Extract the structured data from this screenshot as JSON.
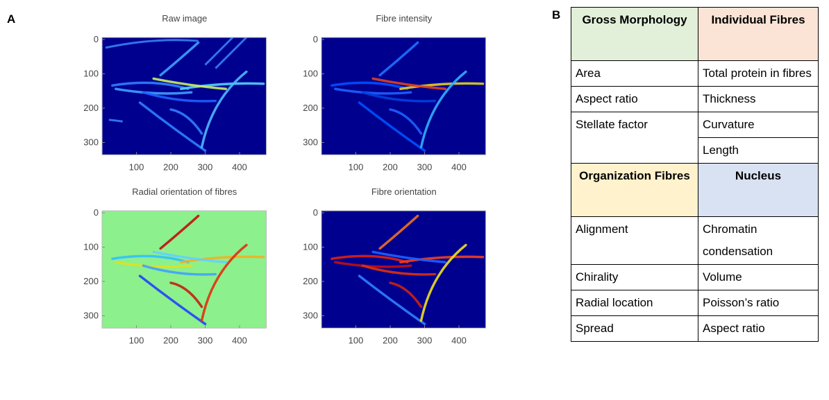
{
  "panel_a": {
    "label": "A",
    "plots": [
      {
        "title": "Raw image",
        "yticks": [
          0,
          100,
          200,
          300
        ],
        "xticks": [
          100,
          200,
          300,
          400
        ]
      },
      {
        "title": "Fibre intensity",
        "yticks": [
          0,
          100,
          200,
          300
        ],
        "xticks": [
          100,
          200,
          300,
          400
        ]
      },
      {
        "title": "Radial orientation of fibres",
        "yticks": [
          0,
          100,
          200,
          300
        ],
        "xticks": [
          100,
          200,
          300,
          400
        ]
      },
      {
        "title": "Fibre orientation",
        "yticks": [
          0,
          100,
          200,
          300
        ],
        "xticks": [
          100,
          200,
          300,
          400
        ]
      }
    ]
  },
  "panel_b": {
    "label": "B",
    "sections": [
      {
        "headers": [
          "Gross Morphology",
          "Individual Fibres"
        ],
        "left": [
          "Area",
          "Aspect ratio",
          "Stellate factor"
        ],
        "right": [
          "Total protein in fibres",
          "Thickness",
          "Curvature",
          "Length"
        ]
      },
      {
        "headers": [
          "Organization Fibres",
          "Nucleus"
        ],
        "left": [
          "Alignment",
          "Chirality",
          "Radial location",
          "Spread"
        ],
        "right": [
          "Chromatin condensation",
          "Volume",
          "Poisson’s ratio",
          "Aspect ratio"
        ]
      }
    ]
  }
}
